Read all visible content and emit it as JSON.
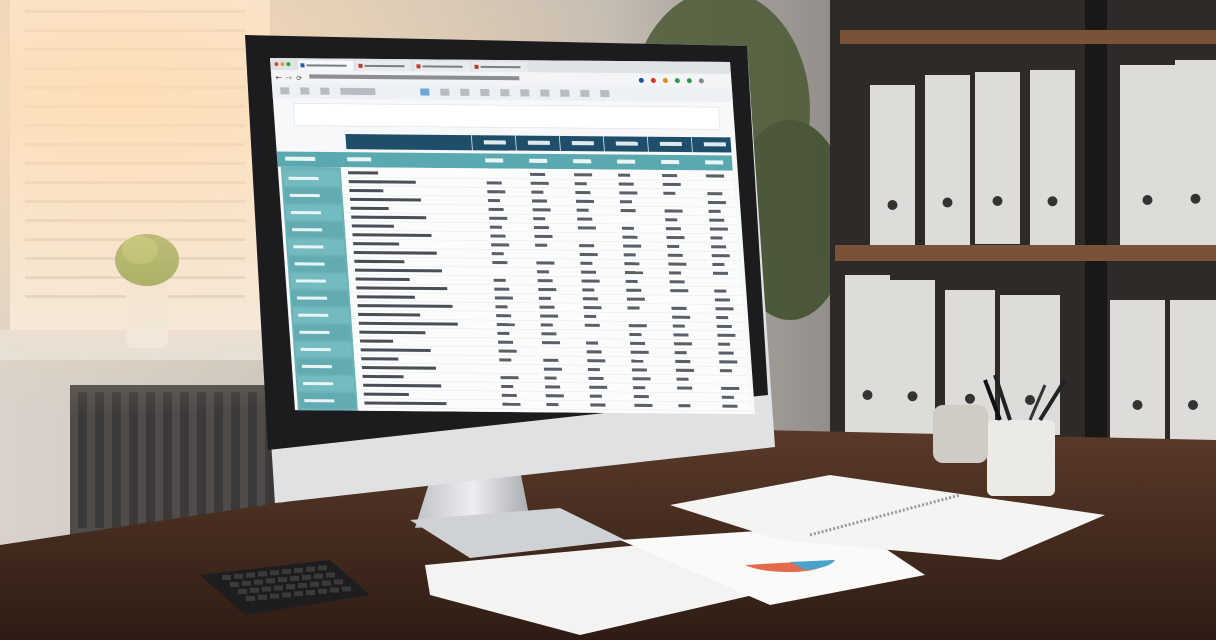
{
  "scene": {
    "subject": "desktop-monitor-spreadsheet",
    "colors": {
      "wall": "#c9c6c0",
      "window_light": "#f4eee6",
      "desk": "#4a2f22",
      "shelf": "#2a2624",
      "binder": "#dedcd8",
      "monitor_bezel": "#1d1d1f",
      "monitor_body": "#d9dbdd",
      "screen_bg": "#f6f8f9",
      "header_navy": "#1f4e6b",
      "header_teal": "#5aa8b0",
      "sidebar_teal": "#6bb3b8"
    }
  },
  "screen": {
    "browser_tabs": 4,
    "table_rows": 27,
    "sidebar_items": 14,
    "columns": 6
  }
}
